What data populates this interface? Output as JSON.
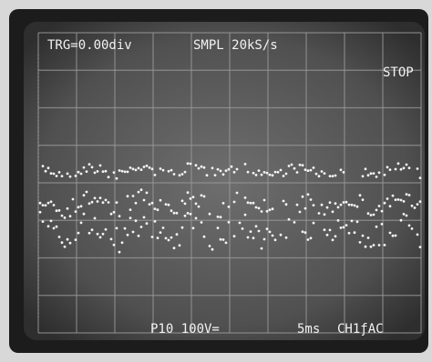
{
  "screen": {
    "trigger": "TRG=0.00div",
    "sampling": "SMPL 20kS/s",
    "status": "STOP",
    "probe": "P10 100V=",
    "timebase": "5ms",
    "channel": "CH1ƒAC"
  }
}
